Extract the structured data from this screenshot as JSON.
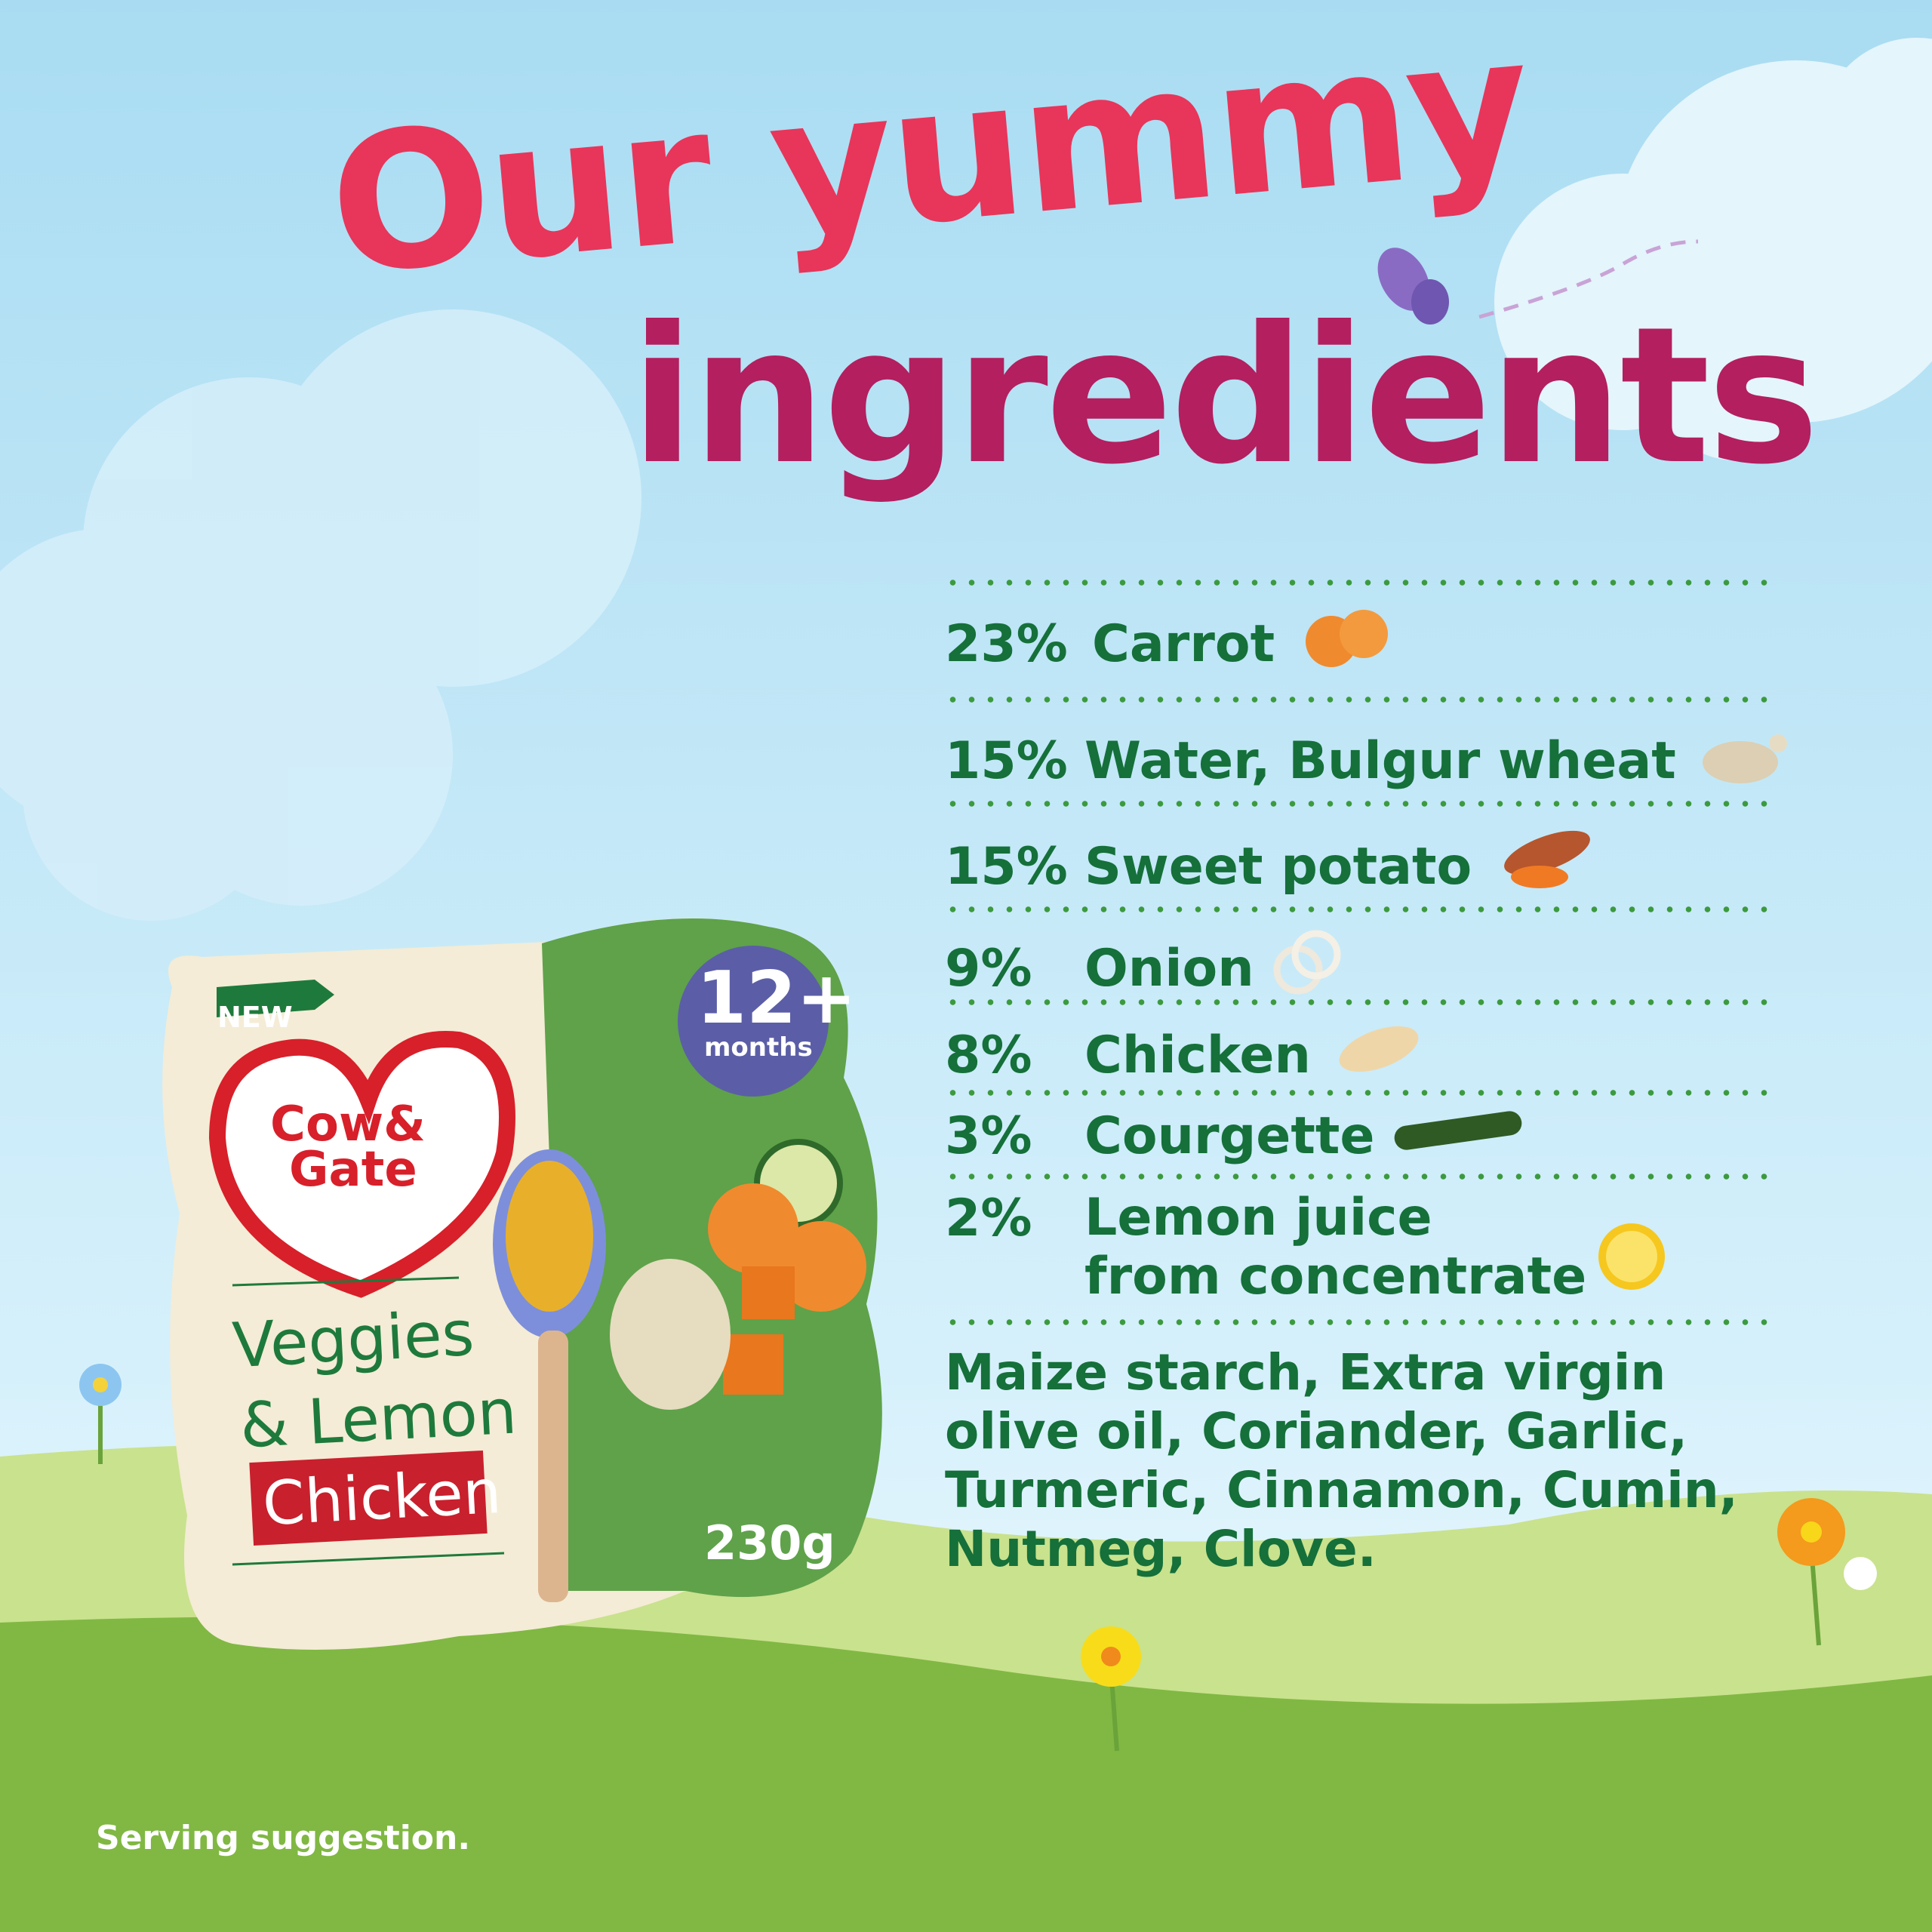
{
  "title": {
    "line1": "Our yummy",
    "line2": "ingredients"
  },
  "ingredients": [
    {
      "percent": "23%",
      "name": "Carrot",
      "icon": "carrot-slices-icon"
    },
    {
      "percent": "15%",
      "name": "Water, Bulgur wheat",
      "icon": "bulgur-wheat-icon"
    },
    {
      "percent": "15%",
      "name": "Sweet potato",
      "icon": "sweet-potato-icon"
    },
    {
      "percent": "9%",
      "name": "Onion",
      "icon": "onion-rings-icon"
    },
    {
      "percent": "8%",
      "name": "Chicken",
      "icon": "chicken-piece-icon"
    },
    {
      "percent": "3%",
      "name": "Courgette",
      "icon": "courgette-icon"
    },
    {
      "percent": "2%",
      "name": "Lemon juice",
      "name_line2": "from concentrate",
      "icon": "lemon-slice-icon"
    }
  ],
  "other_ingredients": "Maize starch, Extra virgin olive oil, Coriander, Garlic, Turmeric, Cinnamon, Cumin, Nutmeg, Clove.",
  "pack": {
    "badge": "NEW",
    "brand_line1": "Cow&",
    "brand_line2": "Gate",
    "age": "12+",
    "age_unit": "months",
    "name_line1": "Veggies",
    "name_line2": "& Lemon",
    "name_line3": "Chicken",
    "weight": "230g"
  },
  "footnote": "Serving suggestion.",
  "colors": {
    "title_pink": "#e8355a",
    "title_magenta": "#b31f5f",
    "text_green": "#15703a",
    "brand_red": "#d7202a",
    "age_badge": "#5b5ea6"
  }
}
